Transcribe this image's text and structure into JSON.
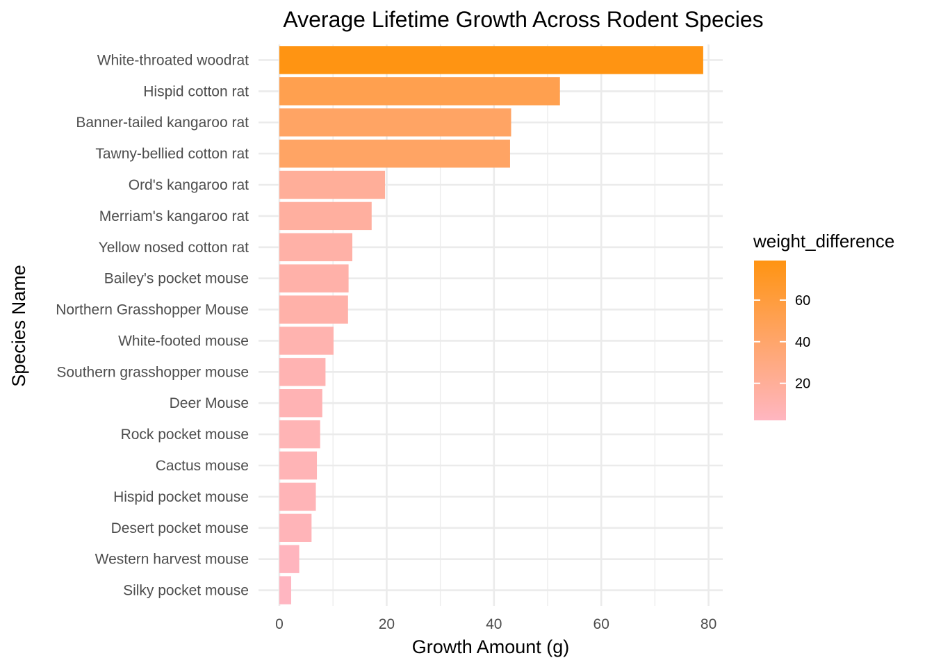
{
  "chart_data": {
    "type": "bar",
    "orientation": "horizontal",
    "title": "Average Lifetime Growth Across Rodent Species",
    "xlabel": "Growth Amount (g)",
    "ylabel": "Species Name",
    "xlim": [
      0,
      82
    ],
    "xticks": [
      0,
      20,
      40,
      60,
      80
    ],
    "xtick_labels": [
      "0",
      "20",
      "40",
      "60",
      "80"
    ],
    "grid": true,
    "categories": [
      "White-throated woodrat",
      "Hispid cotton rat",
      "Banner-tailed kangaroo rat",
      "Tawny-bellied cotton rat",
      "Ord's kangaroo rat",
      "Merriam's kangaroo rat",
      "Yellow nosed cotton rat",
      "Bailey's pocket mouse",
      "Northern Grasshopper Mouse",
      "White-footed mouse",
      "Southern grasshopper mouse",
      "Deer Mouse",
      "Rock pocket mouse",
      "Cactus mouse",
      "Hispid pocket mouse",
      "Desert pocket mouse",
      "Western harvest mouse",
      "Silky pocket mouse"
    ],
    "values": [
      79.0,
      52.3,
      43.2,
      43.0,
      19.7,
      17.2,
      13.6,
      12.9,
      12.8,
      10.1,
      8.6,
      8.0,
      7.6,
      7.0,
      6.8,
      6.0,
      3.7,
      2.2
    ],
    "fill_scale": {
      "variable": "weight_difference",
      "low_color": "#ffb6c1",
      "high_color": "#ff9412",
      "range": [
        2.2,
        79.0
      ]
    },
    "legend": {
      "title": "weight_difference",
      "position": "right",
      "ticks": [
        20,
        40,
        60
      ],
      "tick_labels": [
        "20",
        "40",
        "60"
      ]
    }
  }
}
